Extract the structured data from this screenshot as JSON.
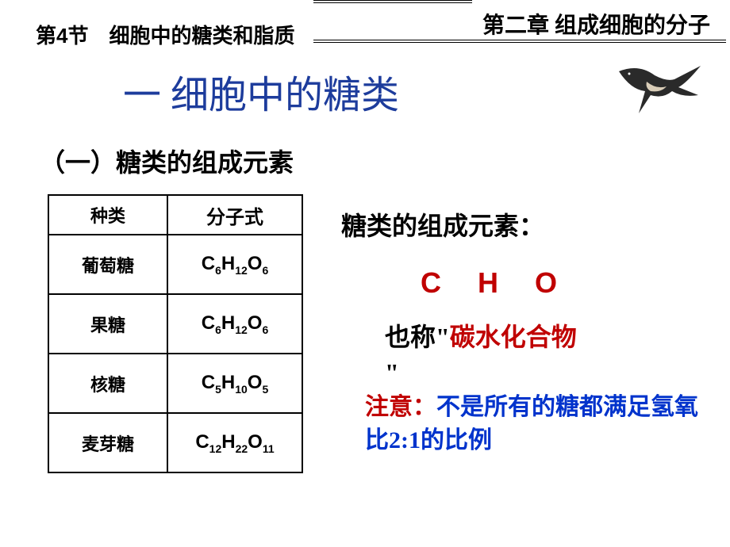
{
  "chapter_title": "第二章 组成细胞的分子",
  "section_title": "第4节　细胞中的糖类和脂质",
  "main_title": "一 细胞中的糖类",
  "sub_heading": "（一）糖类的组成元素",
  "table": {
    "header_type": "种类",
    "header_formula": "分子式",
    "rows": [
      {
        "type": "葡萄糖",
        "formula": "C<sub>6</sub>H<sub>12</sub>O<sub>6</sub>"
      },
      {
        "type": "果糖",
        "formula": "C<sub>6</sub>H<sub>12</sub>O<sub>6</sub>"
      },
      {
        "type": "核糖",
        "formula": "C<sub>5</sub>H<sub>10</sub>O<sub>5</sub>"
      },
      {
        "type": "麦芽糖",
        "formula": "C<sub>12</sub>H<sub>22</sub>O<sub>11</sub>"
      }
    ]
  },
  "right": {
    "elem_label": "糖类的组成元素：",
    "cho": "C  H  O",
    "also_pre": "也称\"",
    "also_red": "碳水化合物",
    "also_post": "\"",
    "note_red": "注意：",
    "note_blue": "不是所有的糖都满足氢氧比2:1的比例"
  },
  "colors": {
    "title_blue": "#1d3c9c",
    "red": "#c00000",
    "note_blue": "#0033cc",
    "black": "#000000",
    "bg": "#ffffff"
  },
  "bird_svg_color_body": "#2a2a2a",
  "bird_svg_color_belly": "#d9cdb8"
}
